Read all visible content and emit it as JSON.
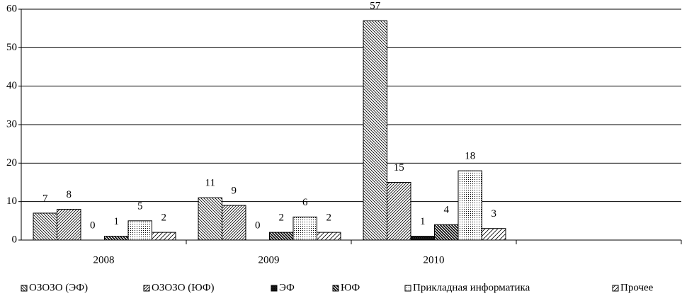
{
  "chart_data": {
    "type": "bar",
    "categories": [
      "2008",
      "2009",
      "2010",
      null
    ],
    "series": [
      {
        "name": "ОЗОЗО (ЭФ)",
        "color": "#000000",
        "pattern": "back-hatch",
        "values": [
          7,
          11,
          57,
          null
        ]
      },
      {
        "name": "ОЗОЗО (ЮФ)",
        "color": "#000000",
        "pattern": "forward-hatch",
        "values": [
          8,
          9,
          15,
          null
        ]
      },
      {
        "name": "ЭФ",
        "color": "#000000",
        "pattern": "cross-hatch",
        "values": [
          0,
          0,
          1,
          null
        ]
      },
      {
        "name": "ЮФ",
        "color": "#000000",
        "pattern": "dark-back-hatch",
        "values": [
          1,
          2,
          4,
          null
        ]
      },
      {
        "name": "Прикладная информатика",
        "color": "#000000",
        "pattern": "dots",
        "values": [
          5,
          6,
          18,
          null
        ]
      },
      {
        "name": "Прочее",
        "color": "#000000",
        "pattern": "sparse-forward-hatch",
        "values": [
          2,
          2,
          3,
          null
        ]
      }
    ],
    "ylim": [
      0,
      60
    ],
    "yticks": [
      0,
      10,
      20,
      30,
      40,
      50,
      60
    ],
    "grid": true,
    "legend": "bottom"
  }
}
